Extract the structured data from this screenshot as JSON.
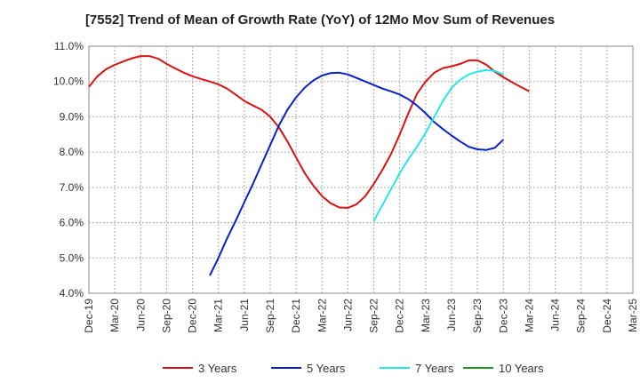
{
  "chart_data": {
    "type": "line",
    "title": "[7552]  Trend of Mean of Growth Rate (YoY) of 12Mo Mov Sum of Revenues",
    "xlabel": "",
    "ylabel": "",
    "ylim": [
      4.0,
      11.0
    ],
    "y_ticks": [
      "4.0%",
      "5.0%",
      "6.0%",
      "7.0%",
      "8.0%",
      "9.0%",
      "10.0%",
      "11.0%"
    ],
    "x_ticks": [
      "Dec-19",
      "Mar-20",
      "Jun-20",
      "Sep-20",
      "Dec-20",
      "Mar-21",
      "Jun-21",
      "Sep-21",
      "Dec-21",
      "Mar-22",
      "Jun-22",
      "Sep-22",
      "Dec-22",
      "Mar-23",
      "Jun-23",
      "Sep-23",
      "Dec-23",
      "Mar-24",
      "Jun-24",
      "Sep-24",
      "Dec-24",
      "Mar-25"
    ],
    "grid": true,
    "legend_position": "bottom",
    "series": [
      {
        "name": "3 Years",
        "color": "#dd1111",
        "points": [
          [
            0,
            9.85
          ],
          [
            1,
            10.15
          ],
          [
            2,
            10.35
          ],
          [
            3,
            10.47
          ],
          [
            4,
            10.57
          ],
          [
            5,
            10.66
          ],
          [
            6,
            10.72
          ],
          [
            7,
            10.72
          ],
          [
            8,
            10.65
          ],
          [
            9,
            10.5
          ],
          [
            10,
            10.37
          ],
          [
            11,
            10.25
          ],
          [
            12,
            10.15
          ],
          [
            13,
            10.07
          ],
          [
            14,
            10.0
          ],
          [
            15,
            9.92
          ],
          [
            16,
            9.8
          ],
          [
            17,
            9.63
          ],
          [
            18,
            9.45
          ],
          [
            19,
            9.32
          ],
          [
            20,
            9.2
          ],
          [
            21,
            9.0
          ],
          [
            22,
            8.7
          ],
          [
            23,
            8.3
          ],
          [
            24,
            7.85
          ],
          [
            25,
            7.4
          ],
          [
            26,
            7.05
          ],
          [
            27,
            6.75
          ],
          [
            28,
            6.55
          ],
          [
            29,
            6.43
          ],
          [
            30,
            6.42
          ],
          [
            31,
            6.52
          ],
          [
            32,
            6.75
          ],
          [
            33,
            7.1
          ],
          [
            34,
            7.5
          ],
          [
            35,
            7.95
          ],
          [
            36,
            8.5
          ],
          [
            37,
            9.1
          ],
          [
            38,
            9.65
          ],
          [
            39,
            10.0
          ],
          [
            40,
            10.25
          ],
          [
            41,
            10.38
          ],
          [
            42,
            10.43
          ],
          [
            43,
            10.5
          ],
          [
            44,
            10.6
          ],
          [
            45,
            10.6
          ],
          [
            46,
            10.48
          ],
          [
            47,
            10.28
          ],
          [
            48,
            10.12
          ],
          [
            49,
            9.98
          ],
          [
            50,
            9.85
          ],
          [
            51,
            9.72
          ]
        ]
      },
      {
        "name": "5 Years",
        "color": "#0a1fcc",
        "points": [
          [
            14,
            4.5
          ],
          [
            15,
            5.0
          ],
          [
            16,
            5.55
          ],
          [
            17,
            6.05
          ],
          [
            18,
            6.58
          ],
          [
            19,
            7.1
          ],
          [
            20,
            7.65
          ],
          [
            21,
            8.2
          ],
          [
            22,
            8.75
          ],
          [
            23,
            9.2
          ],
          [
            24,
            9.55
          ],
          [
            25,
            9.83
          ],
          [
            26,
            10.03
          ],
          [
            27,
            10.17
          ],
          [
            28,
            10.24
          ],
          [
            29,
            10.25
          ],
          [
            30,
            10.2
          ],
          [
            31,
            10.1
          ],
          [
            32,
            10.0
          ],
          [
            33,
            9.9
          ],
          [
            34,
            9.8
          ],
          [
            35,
            9.72
          ],
          [
            36,
            9.63
          ],
          [
            37,
            9.5
          ],
          [
            38,
            9.32
          ],
          [
            39,
            9.1
          ],
          [
            40,
            8.85
          ],
          [
            41,
            8.65
          ],
          [
            42,
            8.47
          ],
          [
            43,
            8.3
          ],
          [
            44,
            8.15
          ],
          [
            45,
            8.08
          ],
          [
            46,
            8.06
          ],
          [
            47,
            8.12
          ],
          [
            48,
            8.35
          ]
        ]
      },
      {
        "name": "7 Years",
        "color": "#22e8ea",
        "points": [
          [
            33,
            6.05
          ],
          [
            34,
            6.5
          ],
          [
            35,
            6.95
          ],
          [
            36,
            7.4
          ],
          [
            37,
            7.8
          ],
          [
            38,
            8.15
          ],
          [
            39,
            8.55
          ],
          [
            40,
            9.0
          ],
          [
            41,
            9.45
          ],
          [
            42,
            9.82
          ],
          [
            43,
            10.05
          ],
          [
            44,
            10.2
          ],
          [
            45,
            10.28
          ],
          [
            46,
            10.32
          ],
          [
            47,
            10.3
          ],
          [
            48,
            10.2
          ]
        ]
      },
      {
        "name": "10 Years",
        "color": "#229922",
        "points": []
      }
    ]
  }
}
